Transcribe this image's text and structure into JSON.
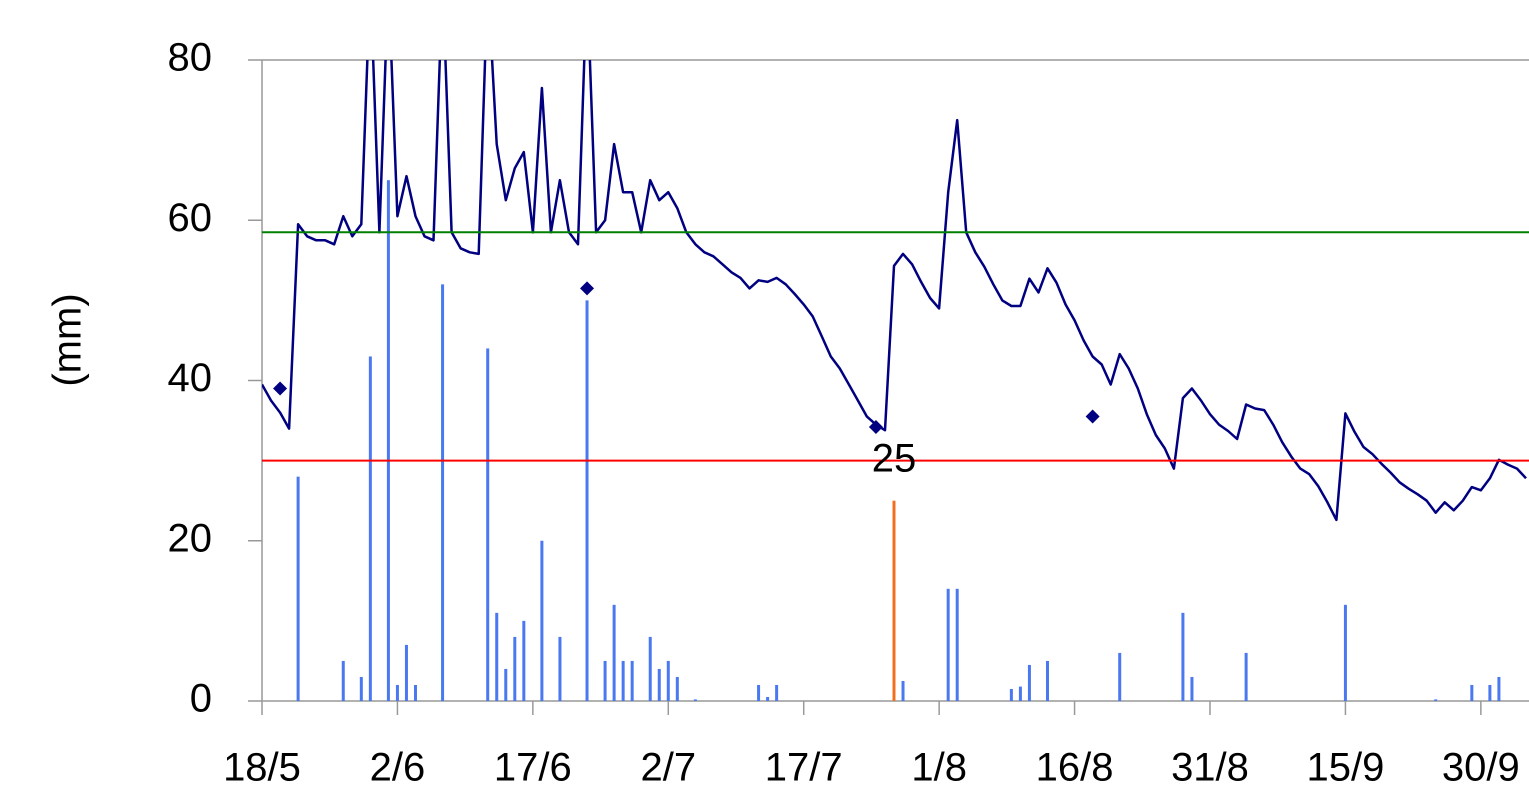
{
  "chart_data": {
    "type": "line",
    "y_label": "(mm)",
    "ylim": [
      0,
      80
    ],
    "yticks": [
      0,
      20,
      40,
      60,
      80
    ],
    "xlim": [
      "18/5",
      "5/10"
    ],
    "xticks": [
      "18/5",
      "2/6",
      "17/6",
      "2/7",
      "17/7",
      "1/8",
      "16/8",
      "31/8",
      "15/9",
      "30/9"
    ],
    "x": [
      "18/5",
      "19/5",
      "20/5",
      "21/5",
      "22/5",
      "23/5",
      "24/5",
      "25/5",
      "26/5",
      "27/5",
      "28/5",
      "29/5",
      "30/5",
      "31/5",
      "1/6",
      "2/6",
      "3/6",
      "4/6",
      "5/6",
      "6/6",
      "7/6",
      "8/6",
      "9/6",
      "10/6",
      "11/6",
      "12/6",
      "13/6",
      "14/6",
      "15/6",
      "16/6",
      "17/6",
      "18/6",
      "19/6",
      "20/6",
      "21/6",
      "22/6",
      "23/6",
      "24/6",
      "25/6",
      "26/6",
      "27/6",
      "28/6",
      "29/6",
      "30/6",
      "1/7",
      "2/7",
      "3/7",
      "4/7",
      "5/7",
      "6/7",
      "7/7",
      "8/7",
      "9/7",
      "10/7",
      "11/7",
      "12/7",
      "13/7",
      "14/7",
      "15/7",
      "16/7",
      "17/7",
      "18/7",
      "19/7",
      "20/7",
      "21/7",
      "22/7",
      "23/7",
      "24/7",
      "25/7",
      "26/7",
      "27/7",
      "28/7",
      "29/7",
      "30/7",
      "31/7",
      "1/8",
      "2/8",
      "3/8",
      "4/8",
      "5/8",
      "6/8",
      "7/8",
      "8/8",
      "9/8",
      "10/8",
      "11/8",
      "12/8",
      "13/8",
      "14/8",
      "15/8",
      "16/8",
      "17/8",
      "18/8",
      "19/8",
      "20/8",
      "21/8",
      "22/8",
      "23/8",
      "24/8",
      "25/8",
      "26/8",
      "27/8",
      "28/8",
      "29/8",
      "30/8",
      "31/8",
      "1/9",
      "2/9",
      "3/9",
      "4/9",
      "5/9",
      "6/9",
      "7/9",
      "8/9",
      "9/9",
      "10/9",
      "11/9",
      "12/9",
      "13/9",
      "14/9",
      "15/9",
      "16/9",
      "17/9",
      "18/9",
      "19/9",
      "20/9",
      "21/9",
      "22/9",
      "23/9",
      "24/9",
      "25/9",
      "26/9",
      "27/9",
      "28/9",
      "29/9",
      "30/9",
      "1/10",
      "2/10",
      "3/10",
      "4/10",
      "5/10"
    ],
    "hlines": [
      {
        "value": 58.5,
        "color": "#008000"
      },
      {
        "value": 30,
        "color": "#ff0000"
      }
    ],
    "series": [
      {
        "type": "line",
        "color": "#000080",
        "values": [
          39.5,
          37.5,
          36,
          34,
          59.5,
          58,
          57.5,
          57.5,
          57,
          60.5,
          58,
          59.5,
          90,
          58.5,
          90,
          60.5,
          65.5,
          60.5,
          58,
          57.5,
          90,
          58.5,
          56.5,
          56,
          55.8,
          90,
          69.5,
          62.5,
          66.5,
          68.5,
          58.5,
          76.5,
          58.5,
          65,
          58.5,
          57,
          90,
          58.5,
          60,
          69.5,
          63.5,
          63.5,
          58.5,
          65,
          62.5,
          63.5,
          61.5,
          58.5,
          57,
          56,
          55.5,
          54.5,
          53.5,
          52.8,
          51.5,
          52.5,
          52.3,
          52.8,
          52,
          50.8,
          49.5,
          48,
          45.5,
          43,
          41.5,
          39.5,
          37.5,
          35.5,
          34.5,
          33.8,
          54.3,
          55.8,
          54.5,
          52.3,
          50.3,
          49,
          63.5,
          72.5,
          58.5,
          56,
          54.2,
          52,
          50,
          49.3,
          49.3,
          52.7,
          51,
          54,
          52.2,
          49.5,
          47.5,
          45,
          43,
          42,
          39.5,
          43.3,
          41.5,
          39,
          35.8,
          33.2,
          31.5,
          29,
          37.8,
          39,
          37.5,
          35.8,
          34.5,
          33.7,
          32.7,
          37,
          36.5,
          36.3,
          34.5,
          32.3,
          30.5,
          29,
          28.3,
          26.8,
          24.8,
          22.6,
          35.9,
          33.6,
          31.7,
          30.8,
          29.6,
          28.5,
          27.3,
          26.5,
          25.8,
          25,
          23.5,
          24.8,
          23.8,
          25,
          26.7,
          26.3,
          27.8,
          30.1,
          29.5,
          29,
          27.8
        ]
      },
      {
        "type": "bar",
        "color": "#4a78f0",
        "x": [
          "22/5",
          "27/5",
          "29/5",
          "30/5",
          "1/6",
          "2/6",
          "3/6",
          "4/6",
          "7/6",
          "12/6",
          "13/6",
          "14/6",
          "15/6",
          "16/6",
          "18/6",
          "20/6",
          "23/6",
          "25/6",
          "26/6",
          "27/6",
          "28/6",
          "30/6",
          "1/7",
          "2/7",
          "3/7",
          "5/7",
          "12/7",
          "13/7",
          "14/7",
          "27/7",
          "28/7",
          "2/8",
          "3/8",
          "9/8",
          "10/8",
          "11/8",
          "13/8",
          "21/8",
          "28/8",
          "29/8",
          "4/9",
          "15/9",
          "25/9",
          "29/9",
          "1/10",
          "2/10"
        ],
        "values": [
          28,
          5,
          3,
          43,
          65,
          2,
          7,
          2,
          52,
          44,
          11,
          4,
          8,
          10,
          20,
          8,
          50,
          5,
          12,
          5,
          5,
          8,
          4,
          5,
          3,
          0.2,
          2,
          0.5,
          2,
          0.5,
          2.5,
          14,
          14,
          1.5,
          1.8,
          4.5,
          5,
          6,
          11,
          3,
          6,
          12,
          0.2,
          2,
          2,
          3
        ]
      },
      {
        "type": "bar",
        "color": "#f07020",
        "x": [
          "27/7"
        ],
        "values": [
          25
        ]
      },
      {
        "type": "scatter",
        "color": "#000080",
        "x": [
          "20/5",
          "23/6",
          "25/7",
          "18/8"
        ],
        "values": [
          39,
          51.5,
          34.2,
          35.5
        ]
      }
    ]
  }
}
